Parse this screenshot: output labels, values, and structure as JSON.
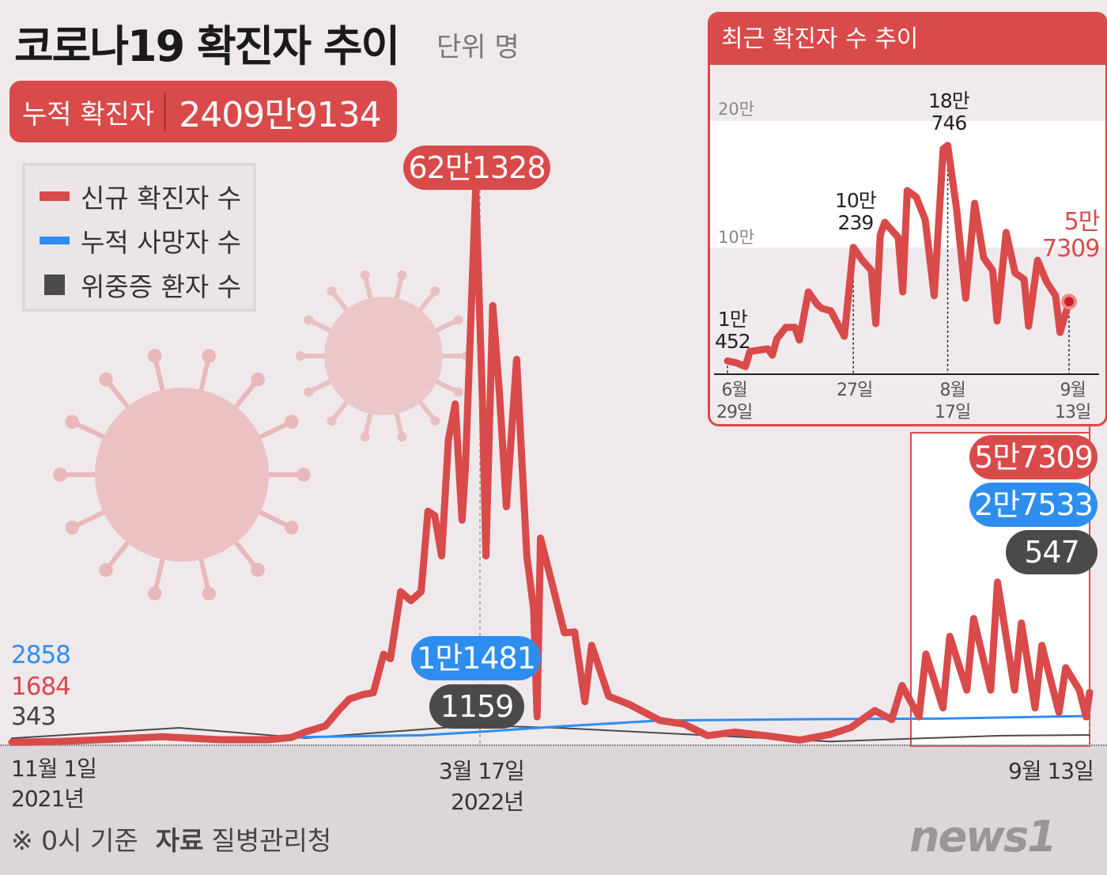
{
  "header": {
    "title": "코로나19 확진자 추이",
    "unit": "단위 명"
  },
  "total": {
    "label": "누적 확진자",
    "value": "2409만9134"
  },
  "legend": [
    {
      "label": "신규 확진자 수",
      "color": "#d94a4a"
    },
    {
      "label": "누적 사망자 수",
      "color": "#2e8ef0"
    },
    {
      "label": "위중증 환자 수",
      "color": "#4a4a4a"
    }
  ],
  "main_labels": {
    "start_deaths": "2858",
    "start_cases": "1684",
    "start_critical": "343",
    "peak_cases": "62만1328",
    "peak_deaths": "1만1481",
    "peak_critical": "1159",
    "end_cases": "5만7309",
    "end_deaths": "2만7533",
    "end_critical": "547",
    "x_start_date": "11월 1일",
    "x_start_year": "2021년",
    "x_mid_date": "3월 17일",
    "x_mid_year": "2022년",
    "x_end_date": "9월 13일"
  },
  "inset": {
    "title": "최근 확진자 수 추이",
    "grid": [
      "20만",
      "10만"
    ],
    "labels": [
      {
        "top": "1만",
        "bottom": "452"
      },
      {
        "top": "10만",
        "bottom": "239"
      },
      {
        "top": "18만",
        "bottom": "746"
      },
      {
        "top": "5만",
        "bottom": "7309"
      }
    ],
    "xticks": [
      {
        "top": "6월",
        "bottom": "29일"
      },
      {
        "top": "",
        "bottom": "27일"
      },
      {
        "top": "8월",
        "bottom": "17일"
      },
      {
        "top": "9월",
        "bottom": "13일"
      }
    ]
  },
  "footer": {
    "note": "※ 0시 기준",
    "source_label": "자료",
    "source": "질병관리청"
  },
  "logo": "news1",
  "chart_data": [
    {
      "type": "line",
      "x_range": [
        "2021-11-01",
        "2022-09-13"
      ],
      "series": [
        {
          "name": "신규 확진자 수",
          "color": "#d94a4a",
          "points": [
            [
              "2021-11-01",
              1684
            ],
            [
              "2021-11-15",
              2400
            ],
            [
              "2021-12-01",
              5100
            ],
            [
              "2021-12-15",
              7800
            ],
            [
              "2022-01-01",
              4400
            ],
            [
              "2022-01-15",
              4400
            ],
            [
              "2022-01-22",
              7000
            ],
            [
              "2022-01-26",
              13000
            ],
            [
              "2022-02-01",
              20000
            ],
            [
              "2022-02-05",
              38000
            ],
            [
              "2022-02-08",
              50000
            ],
            [
              "2022-02-12",
              55000
            ],
            [
              "2022-02-15",
              57000
            ],
            [
              "2022-02-18",
              100000
            ],
            [
              "2022-02-20",
              95000
            ],
            [
              "2022-02-23",
              170000
            ],
            [
              "2022-02-26",
              160000
            ],
            [
              "2022-03-01",
              170000
            ],
            [
              "2022-03-03",
              260000
            ],
            [
              "2022-03-05",
              255000
            ],
            [
              "2022-03-07",
              210000
            ],
            [
              "2022-03-09",
              340000
            ],
            [
              "2022-03-11",
              380000
            ],
            [
              "2022-03-13",
              250000
            ],
            [
              "2022-03-14",
              310000
            ],
            [
              "2022-03-17",
              621328
            ],
            [
              "2022-03-19",
              380000
            ],
            [
              "2022-03-20",
              210000
            ],
            [
              "2022-03-22",
              490000
            ],
            [
              "2022-03-24",
              390000
            ],
            [
              "2022-03-26",
              265000
            ],
            [
              "2022-03-29",
              430000
            ],
            [
              "2022-04-01",
              210000
            ],
            [
              "2022-04-03",
              150000
            ],
            [
              "2022-04-04",
              30000
            ],
            [
              "2022-04-05",
              230000
            ],
            [
              "2022-04-07",
              200000
            ],
            [
              "2022-04-09",
              170000
            ],
            [
              "2022-04-12",
              124000
            ],
            [
              "2022-04-15",
              125000
            ],
            [
              "2022-04-18",
              47000
            ],
            [
              "2022-04-20",
              110000
            ],
            [
              "2022-04-25",
              53000
            ],
            [
              "2022-05-01",
              44000
            ],
            [
              "2022-05-10",
              26000
            ],
            [
              "2022-05-17",
              22000
            ],
            [
              "2022-05-24",
              9000
            ],
            [
              "2022-06-01",
              13000
            ],
            [
              "2022-06-10",
              9000
            ],
            [
              "2022-06-20",
              4000
            ],
            [
              "2022-06-29",
              10452
            ],
            [
              "2022-07-05",
              18000
            ],
            [
              "2022-07-12",
              37000
            ],
            [
              "2022-07-17",
              27000
            ],
            [
              "2022-07-20",
              65000
            ],
            [
              "2022-07-25",
              30000
            ],
            [
              "2022-07-27",
              100239
            ],
            [
              "2022-08-01",
              40000
            ],
            [
              "2022-08-03",
              120000
            ],
            [
              "2022-08-08",
              60000
            ],
            [
              "2022-08-10",
              140000
            ],
            [
              "2022-08-15",
              60000
            ],
            [
              "2022-08-17",
              180746
            ],
            [
              "2022-08-22",
              60000
            ],
            [
              "2022-08-24",
              135000
            ],
            [
              "2022-08-28",
              40000
            ],
            [
              "2022-08-30",
              110000
            ],
            [
              "2022-09-04",
              35000
            ],
            [
              "2022-09-06",
              85000
            ],
            [
              "2022-09-10",
              60000
            ],
            [
              "2022-09-12",
              30000
            ],
            [
              "2022-09-13",
              57309
            ]
          ]
        },
        {
          "name": "누적 사망자 수",
          "color": "#2e8ef0",
          "points": [
            [
              "2021-11-01",
              2858
            ],
            [
              "2021-12-15",
              4500
            ],
            [
              "2022-01-26",
              6600
            ],
            [
              "2022-03-01",
              8400
            ],
            [
              "2022-03-17",
              11481
            ],
            [
              "2022-04-10",
              17000
            ],
            [
              "2022-05-10",
              23000
            ],
            [
              "2022-06-29",
              24500
            ],
            [
              "2022-08-01",
              25000
            ],
            [
              "2022-09-13",
              27533
            ]
          ]
        },
        {
          "name": "위중증 환자 수",
          "color": "#4a4a4a",
          "points": [
            [
              "2021-11-01",
              343
            ],
            [
              "2021-12-20",
              1000
            ],
            [
              "2022-01-26",
              350
            ],
            [
              "2022-03-17",
              1159
            ],
            [
              "2022-04-10",
              1000
            ],
            [
              "2022-06-29",
              140
            ],
            [
              "2022-08-17",
              500
            ],
            [
              "2022-09-13",
              547
            ]
          ]
        }
      ]
    },
    {
      "type": "line",
      "title": "최근 확진자 수 추이",
      "x_range": [
        "2022-06-29",
        "2022-09-13"
      ],
      "ylim": [
        0,
        200000
      ],
      "yticks": [
        "10만",
        "20만"
      ],
      "series": [
        {
          "name": "신규 확진자 수",
          "color": "#d94a4a",
          "points": [
            [
              "2022-06-29",
              10452
            ],
            [
              "2022-07-01",
              9000
            ],
            [
              "2022-07-03",
              6000
            ],
            [
              "2022-07-04",
              18000
            ],
            [
              "2022-07-06",
              19000
            ],
            [
              "2022-07-08",
              20000
            ],
            [
              "2022-07-09",
              15000
            ],
            [
              "2022-07-10",
              28000
            ],
            [
              "2022-07-12",
              37000
            ],
            [
              "2022-07-14",
              37000
            ],
            [
              "2022-07-15",
              27000
            ],
            [
              "2022-07-17",
              65000
            ],
            [
              "2022-07-19",
              55000
            ],
            [
              "2022-07-20",
              52000
            ],
            [
              "2022-07-22",
              50000
            ],
            [
              "2022-07-25",
              30000
            ],
            [
              "2022-07-27",
              100239
            ],
            [
              "2022-07-29",
              90000
            ],
            [
              "2022-07-31",
              82000
            ],
            [
              "2022-08-01",
              40000
            ],
            [
              "2022-08-02",
              110000
            ],
            [
              "2022-08-03",
              120000
            ],
            [
              "2022-08-05",
              112000
            ],
            [
              "2022-08-06",
              108000
            ],
            [
              "2022-08-07",
              65000
            ],
            [
              "2022-08-08",
              145000
            ],
            [
              "2022-08-10",
              140000
            ],
            [
              "2022-08-12",
              122000
            ],
            [
              "2022-08-14",
              62000
            ],
            [
              "2022-08-16",
              178000
            ],
            [
              "2022-08-17",
              180746
            ],
            [
              "2022-08-19",
              130000
            ],
            [
              "2022-08-21",
              60000
            ],
            [
              "2022-08-23",
              135000
            ],
            [
              "2022-08-25",
              92000
            ],
            [
              "2022-08-27",
              82000
            ],
            [
              "2022-08-28",
              42000
            ],
            [
              "2022-08-30",
              112000
            ],
            [
              "2022-09-01",
              80000
            ],
            [
              "2022-09-03",
              75000
            ],
            [
              "2022-09-04",
              38000
            ],
            [
              "2022-09-06",
              90000
            ],
            [
              "2022-09-08",
              73000
            ],
            [
              "2022-09-10",
              62000
            ],
            [
              "2022-09-11",
              33000
            ],
            [
              "2022-09-13",
              57309
            ]
          ]
        }
      ]
    }
  ]
}
